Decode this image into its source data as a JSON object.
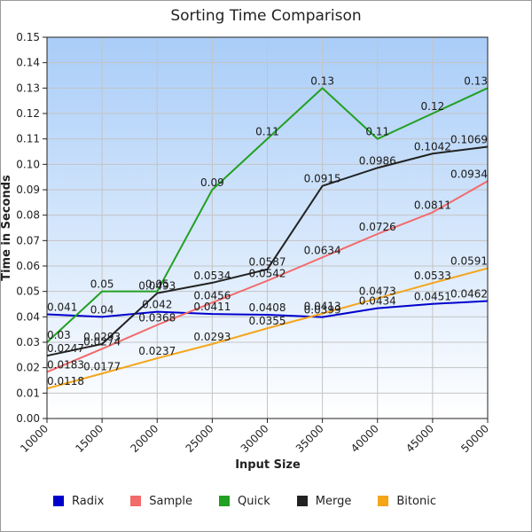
{
  "chart_data": {
    "type": "line",
    "title": "Sorting Time Comparison",
    "xlabel": "Input Size",
    "ylabel": "Time in Seconds",
    "x": [
      10000,
      15000,
      20000,
      25000,
      30000,
      35000,
      40000,
      45000,
      50000
    ],
    "xlim": [
      10000,
      50000
    ],
    "ylim": [
      0,
      0.15
    ],
    "yticks": [
      "0.00",
      "0.01",
      "0.02",
      "0.03",
      "0.04",
      "0.05",
      "0.06",
      "0.07",
      "0.08",
      "0.09",
      "0.10",
      "0.11",
      "0.12",
      "0.13",
      "0.14",
      "0.15"
    ],
    "xticks": [
      "10000",
      "15000",
      "20000",
      "25000",
      "30000",
      "35000",
      "40000",
      "45000",
      "50000"
    ],
    "grid": true,
    "legend_position": "bottom",
    "series": [
      {
        "name": "Radix",
        "color": "#0000cc",
        "values": [
          0.041,
          0.04,
          0.042,
          0.0411,
          0.0408,
          0.0399,
          0.0434,
          0.0451,
          0.0462
        ],
        "labels": [
          "0.041",
          "0.04",
          "0.042",
          "0.0411",
          "0.0408",
          "0.0399",
          "0.0434",
          "0.0451",
          "0.0462"
        ]
      },
      {
        "name": "Sample",
        "color": "#f26a6a",
        "values": [
          0.0183,
          0.0274,
          0.0368,
          0.0456,
          0.0542,
          0.0634,
          0.0726,
          0.0811,
          0.0934
        ],
        "labels": [
          "0.0183",
          "0.0274",
          "0.0368",
          "0.0456",
          "0.0542",
          "0.0634",
          "0.0726",
          "0.0811",
          "0.0934"
        ]
      },
      {
        "name": "Quick",
        "color": "#22a022",
        "values": [
          0.03,
          0.05,
          0.05,
          0.09,
          0.11,
          0.13,
          0.11,
          0.12,
          0.13
        ],
        "labels": [
          "0.03",
          "0.05",
          "0.05",
          "0.09",
          "0.11",
          "0.13",
          "0.11",
          "0.12",
          "0.13"
        ]
      },
      {
        "name": "Merge",
        "color": "#222222",
        "values": [
          0.0247,
          0.0293,
          0.0493,
          0.0534,
          0.0587,
          0.0915,
          0.0986,
          0.1042,
          0.1069
        ],
        "labels": [
          "0.0247",
          "0.0293",
          "0.0493",
          "0.0534",
          "0.0587",
          "0.0915",
          "0.0986",
          "0.1042",
          "0.1069"
        ]
      },
      {
        "name": "Bitonic",
        "color": "#f5a51a",
        "values": [
          0.0118,
          0.0177,
          0.0237,
          0.0293,
          0.0355,
          0.0413,
          0.0473,
          0.0533,
          0.0591
        ],
        "labels": [
          "0.0118",
          "0.0177",
          "0.0237",
          "0.0293",
          "0.0355",
          "0.0413",
          "0.0473",
          "0.0533",
          "0.0591"
        ]
      }
    ]
  }
}
